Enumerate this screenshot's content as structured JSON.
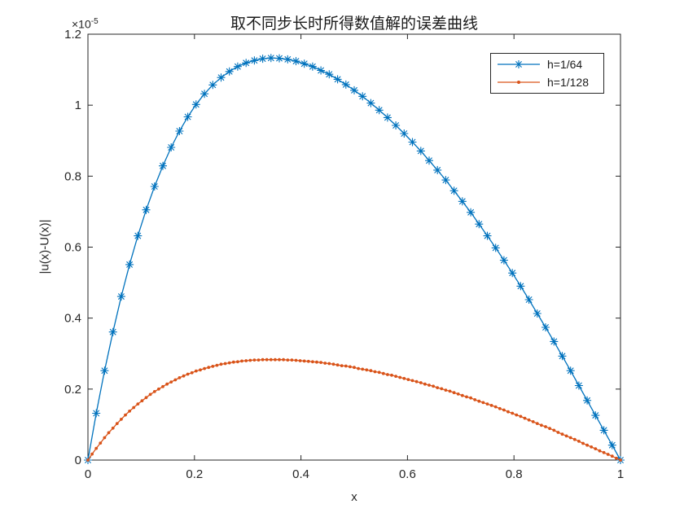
{
  "chart_data": {
    "type": "line",
    "title": "取不同步长时所得数值解的误差曲线",
    "xlabel": "x",
    "ylabel": "|u(x)-U(x)|",
    "y_exponent_base": "×10",
    "y_exponent_power": "-5",
    "y_scale_note": "y values are in units of 1e-5",
    "xlim": [
      0,
      1
    ],
    "ylim_1e5": [
      0,
      1.2
    ],
    "grid": false,
    "legend_position": "northeast",
    "axis_color": "#262626",
    "background": "#ffffff",
    "x_tick_values": [
      0,
      0.2,
      0.4,
      0.6,
      0.8,
      1
    ],
    "x_tick_labels": [
      "0",
      "0.2",
      "0.4",
      "0.6",
      "0.8",
      "1"
    ],
    "y_tick_values": [
      0,
      0.2,
      0.4,
      0.6,
      0.8,
      1,
      1.2
    ],
    "y_tick_labels": [
      "0",
      "0.2",
      "0.4",
      "0.6",
      "0.8",
      "1",
      "1.2"
    ],
    "series": [
      {
        "name": "h=1/64",
        "h": "1/64",
        "color": "#0072BD",
        "marker": "asterisk",
        "n_points": 65,
        "x_start": 0,
        "x_step": 0.015625,
        "values_1e5": [
          0,
          0.132,
          0.252,
          0.361,
          0.461,
          0.551,
          0.632,
          0.705,
          0.771,
          0.829,
          0.881,
          0.927,
          0.967,
          1.002,
          1.032,
          1.057,
          1.078,
          1.095,
          1.109,
          1.119,
          1.126,
          1.131,
          1.133,
          1.132,
          1.129,
          1.124,
          1.117,
          1.109,
          1.098,
          1.087,
          1.073,
          1.058,
          1.042,
          1.025,
          1.006,
          0.986,
          0.965,
          0.943,
          0.92,
          0.896,
          0.871,
          0.844,
          0.817,
          0.789,
          0.759,
          0.729,
          0.698,
          0.665,
          0.632,
          0.598,
          0.563,
          0.527,
          0.49,
          0.452,
          0.413,
          0.374,
          0.334,
          0.293,
          0.252,
          0.21,
          0.168,
          0.126,
          0.084,
          0.042,
          0
        ]
      },
      {
        "name": "h=1/128",
        "h": "1/128",
        "color": "#D95319",
        "marker": "dot",
        "n_points": 129,
        "x_start": 0,
        "x_step": 0.0078125,
        "values_1e5": [
          0,
          0.017,
          0.033,
          0.048,
          0.063,
          0.077,
          0.09,
          0.103,
          0.115,
          0.127,
          0.138,
          0.148,
          0.158,
          0.167,
          0.176,
          0.185,
          0.193,
          0.2,
          0.207,
          0.214,
          0.22,
          0.226,
          0.232,
          0.237,
          0.242,
          0.246,
          0.251,
          0.254,
          0.258,
          0.261,
          0.264,
          0.267,
          0.27,
          0.272,
          0.274,
          0.276,
          0.277,
          0.279,
          0.28,
          0.281,
          0.282,
          0.282,
          0.283,
          0.283,
          0.283,
          0.283,
          0.283,
          0.283,
          0.282,
          0.282,
          0.281,
          0.28,
          0.279,
          0.278,
          0.277,
          0.276,
          0.275,
          0.273,
          0.272,
          0.27,
          0.268,
          0.266,
          0.265,
          0.263,
          0.261,
          0.258,
          0.256,
          0.254,
          0.252,
          0.249,
          0.247,
          0.244,
          0.241,
          0.239,
          0.236,
          0.233,
          0.23,
          0.227,
          0.224,
          0.221,
          0.218,
          0.214,
          0.211,
          0.208,
          0.204,
          0.201,
          0.197,
          0.194,
          0.19,
          0.186,
          0.182,
          0.178,
          0.175,
          0.17,
          0.166,
          0.162,
          0.158,
          0.154,
          0.15,
          0.145,
          0.141,
          0.136,
          0.132,
          0.127,
          0.123,
          0.118,
          0.113,
          0.108,
          0.103,
          0.098,
          0.094,
          0.089,
          0.084,
          0.078,
          0.073,
          0.068,
          0.063,
          0.058,
          0.053,
          0.047,
          0.042,
          0.037,
          0.032,
          0.026,
          0.021,
          0.016,
          0.011,
          0.005,
          0
        ]
      }
    ]
  }
}
